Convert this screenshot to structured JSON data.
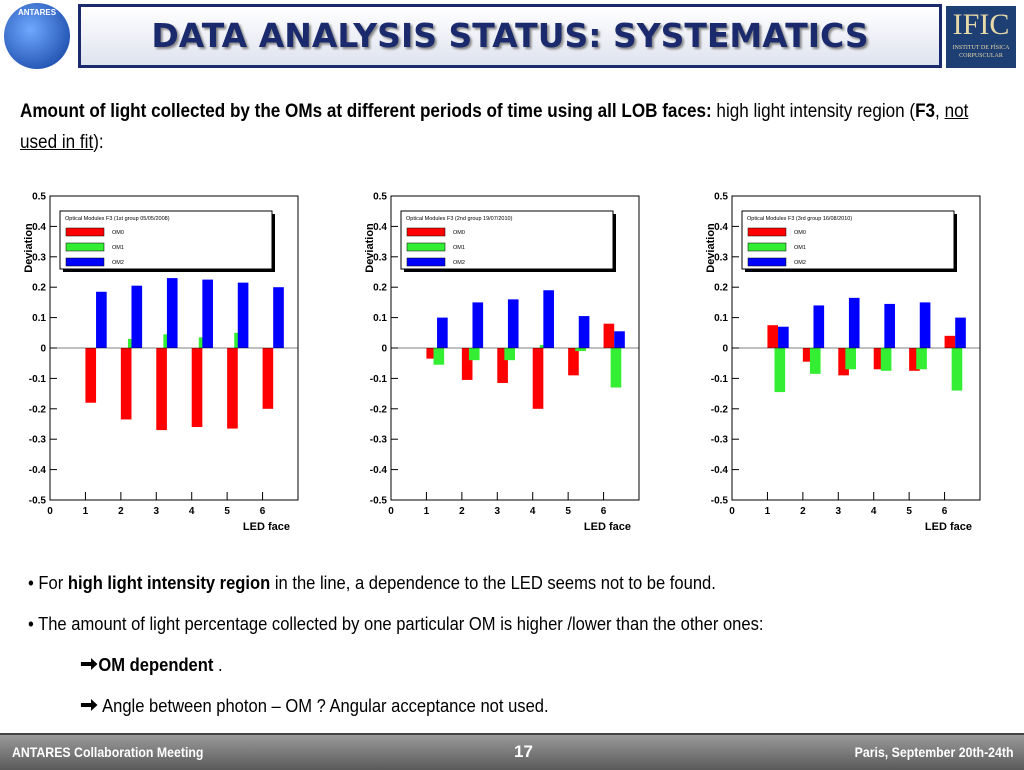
{
  "header": {
    "title": "DATA ANALYSIS STATUS: SYSTEMATICS",
    "left_logo": "ANTARES",
    "right_logo": "IFIC",
    "right_logo_sub": "INSTITUT DE FÍSICA CORPUSCULAR"
  },
  "intro": {
    "lead": "Amount of light collected by the OMs at different periods of time using all LOB faces:",
    "text1": " high light intensity region (",
    "f3": "F3",
    "comma": ", ",
    "underlined": "not used in fit",
    "end": "):"
  },
  "bullets": {
    "b1_pre": "For ",
    "b1_bold": "high light intensity region",
    "b1_post": " in the line, a dependence to the LED seems not to be found.",
    "b2": "The amount of light percentage collected by one particular OM is higher /lower than the other ones:",
    "sub1_bold": "OM dependent",
    "sub1_post": " .",
    "sub2": " Angle between photon – OM ? Angular acceptance not used."
  },
  "footer": {
    "left": "ANTARES Collaboration Meeting",
    "page": "17",
    "right": "Paris, September 20th-24th"
  },
  "chart_data": [
    {
      "type": "bar",
      "legend_title": "Optical Modules F3 (1st group 05/05/2008)",
      "x_label": "LED face",
      "y_label": "Deviation",
      "x": [
        1,
        2,
        3,
        4,
        5,
        6
      ],
      "xlim": [
        0,
        7
      ],
      "xticks": [
        0,
        1,
        2,
        3,
        4,
        5,
        6
      ],
      "ylim": [
        -0.5,
        0.5
      ],
      "yticks": [
        -0.5,
        -0.4,
        -0.3,
        -0.2,
        -0.1,
        0,
        0.1,
        0.2,
        0.3,
        0.4,
        0.5
      ],
      "series": [
        {
          "name": "OM0",
          "color": "#ff0000",
          "values": [
            -0.18,
            -0.235,
            -0.27,
            -0.26,
            -0.265,
            -0.2
          ]
        },
        {
          "name": "OM1",
          "color": "#33ee33",
          "values": [
            0.0,
            0.03,
            0.045,
            0.035,
            0.05,
            0.0
          ]
        },
        {
          "name": "OM2",
          "color": "#0000ff",
          "values": [
            0.185,
            0.205,
            0.23,
            0.225,
            0.215,
            0.2
          ]
        }
      ]
    },
    {
      "type": "bar",
      "legend_title": "Optical Modules F3 (2nd group 19/07/2010)",
      "x_label": "LED face",
      "y_label": "Deviation",
      "x": [
        1,
        2,
        3,
        4,
        5,
        6
      ],
      "xlim": [
        0,
        7
      ],
      "xticks": [
        0,
        1,
        2,
        3,
        4,
        5,
        6
      ],
      "ylim": [
        -0.5,
        0.5
      ],
      "yticks": [
        -0.5,
        -0.4,
        -0.3,
        -0.2,
        -0.1,
        0,
        0.1,
        0.2,
        0.3,
        0.4,
        0.5
      ],
      "series": [
        {
          "name": "OM0",
          "color": "#ff0000",
          "values": [
            -0.035,
            -0.105,
            -0.115,
            -0.2,
            -0.09,
            0.08
          ]
        },
        {
          "name": "OM1",
          "color": "#33ee33",
          "values": [
            -0.055,
            -0.04,
            -0.04,
            0.01,
            -0.01,
            -0.13
          ]
        },
        {
          "name": "OM2",
          "color": "#0000ff",
          "values": [
            0.1,
            0.15,
            0.16,
            0.19,
            0.105,
            0.055
          ]
        }
      ]
    },
    {
      "type": "bar",
      "legend_title": "Optical Modules F3 (3rd group 16/08/2010)",
      "x_label": "LED face",
      "y_label": "Deviation",
      "x": [
        1,
        2,
        3,
        4,
        5,
        6
      ],
      "xlim": [
        0,
        7
      ],
      "xticks": [
        0,
        1,
        2,
        3,
        4,
        5,
        6
      ],
      "ylim": [
        -0.5,
        0.5
      ],
      "yticks": [
        -0.5,
        -0.4,
        -0.3,
        -0.2,
        -0.1,
        0,
        0.1,
        0.2,
        0.3,
        0.4,
        0.5
      ],
      "series": [
        {
          "name": "OM0",
          "color": "#ff0000",
          "values": [
            0.075,
            -0.045,
            -0.09,
            -0.07,
            -0.075,
            0.04
          ]
        },
        {
          "name": "OM1",
          "color": "#33ee33",
          "values": [
            -0.145,
            -0.085,
            -0.07,
            -0.075,
            -0.07,
            -0.14
          ]
        },
        {
          "name": "OM2",
          "color": "#0000ff",
          "values": [
            0.07,
            0.14,
            0.165,
            0.145,
            0.15,
            0.1
          ]
        }
      ]
    }
  ]
}
